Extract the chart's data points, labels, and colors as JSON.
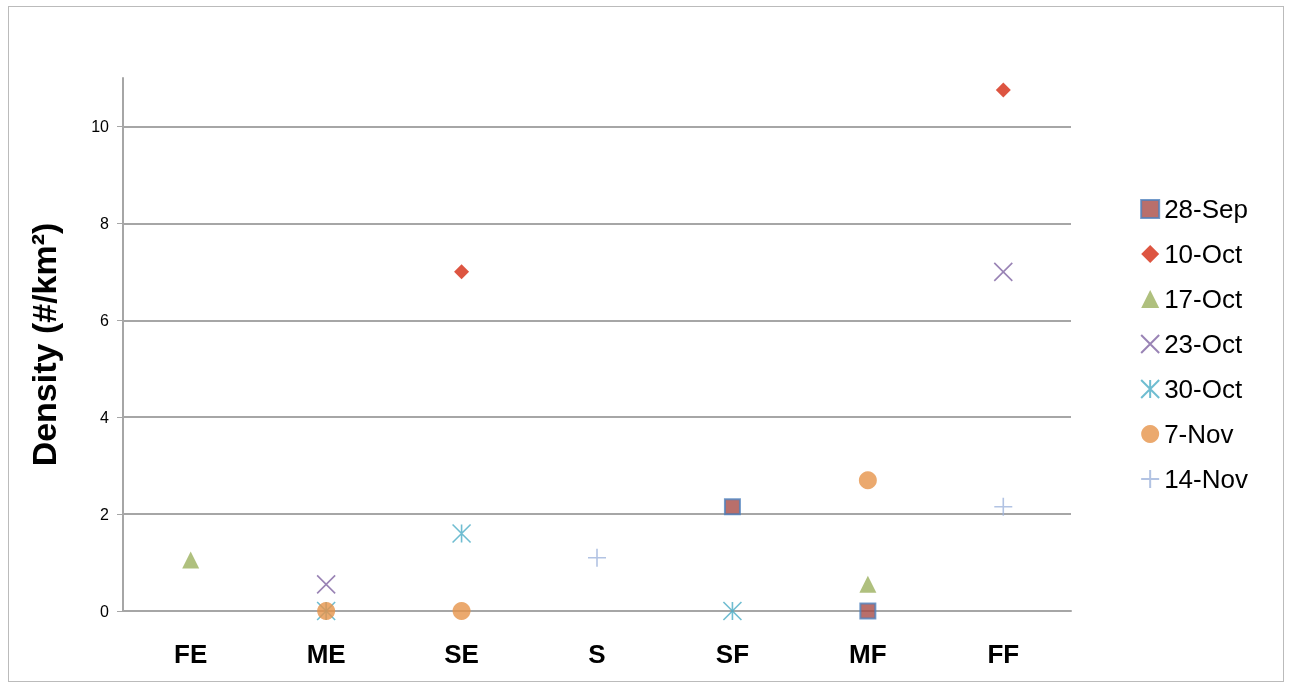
{
  "chart_data": {
    "type": "scatter",
    "ylabel": "Density (#/km²)",
    "categories": [
      "FE",
      "ME",
      "SE",
      "S",
      "SF",
      "MF",
      "FF"
    ],
    "ylim": [
      0,
      11
    ],
    "yticks": [
      0,
      2,
      4,
      6,
      8,
      10
    ],
    "grid": "y",
    "legend": "right",
    "series": [
      {
        "name": "28-Sep",
        "color": "#a84b46",
        "marker": "square",
        "values": [
          null,
          null,
          null,
          null,
          2.15,
          0,
          null
        ]
      },
      {
        "name": "10-Oct",
        "color": "#d42a12",
        "marker": "diamond",
        "values": [
          null,
          null,
          7.0,
          null,
          null,
          null,
          10.75
        ]
      },
      {
        "name": "17-Oct",
        "color": "#9bb05e",
        "marker": "triangle",
        "values": [
          1.05,
          null,
          null,
          null,
          null,
          0.55,
          null
        ]
      },
      {
        "name": "23-Oct",
        "color": "#8064a2",
        "marker": "cross",
        "values": [
          null,
          0.55,
          null,
          null,
          null,
          null,
          7.0
        ]
      },
      {
        "name": "30-Oct",
        "color": "#4bacc6",
        "values": [
          null,
          0,
          1.6,
          null,
          0,
          null,
          null
        ]
      },
      {
        "name": "7-Nov",
        "color": "#e6944a",
        "marker": "circle",
        "values": [
          null,
          0,
          0,
          null,
          null,
          2.7,
          null
        ]
      },
      {
        "name": "14-Nov",
        "color": "#9fb4dc",
        "marker": "plus",
        "values": [
          null,
          null,
          null,
          1.1,
          null,
          null,
          2.15
        ]
      }
    ]
  }
}
